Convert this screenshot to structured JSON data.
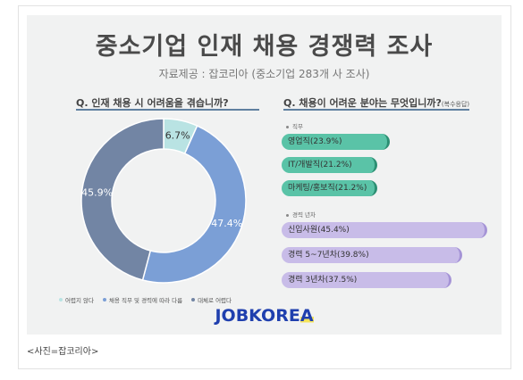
{
  "header": {
    "title": "중소기업 인재 채용 경쟁력 조사",
    "subtitle": "자료제공 : 잡코리아 (중소기업 283개 사 조사)"
  },
  "caption": "<사진=잡코리아>",
  "logo": {
    "text_main": "JOBKORE",
    "text_accent": "A"
  },
  "chart_data": [
    {
      "type": "pie",
      "title": "Q. 인재 채용 시 어려움을 겪습니까?",
      "categories": [
        "어렵지 않다",
        "채용 직무 및 경력에 따라 다름",
        "대체로 어렵다"
      ],
      "values": [
        6.7,
        47.4,
        45.9
      ],
      "labels": [
        "6.7%",
        "47.4%",
        "45.9%"
      ],
      "colors": [
        "#b9e3e3",
        "#7b9fd6",
        "#7285a4"
      ],
      "legend_position": "bottom"
    },
    {
      "type": "bar",
      "title": "Q. 채용이 어려운 분야는 무엇입니까?",
      "title_note": "(복수응답)",
      "groups": [
        {
          "name": "직무",
          "color": "#5ac3a7",
          "categories": [
            "영업직",
            "IT/개발직",
            "마케팅/홍보직"
          ],
          "values": [
            23.9,
            21.2,
            21.2
          ],
          "labels": [
            "영업직(23.9%)",
            "IT/개발직(21.2%)",
            "마케팅/홍보직(21.2%)"
          ]
        },
        {
          "name": "경력 년차",
          "color": "#c8bce8",
          "categories": [
            "신입사원",
            "경력 5~7년차",
            "경력 3년차"
          ],
          "values": [
            45.4,
            39.8,
            37.5
          ],
          "labels": [
            "신입사원(45.4%)",
            "경력 5~7년차(39.8%)",
            "경력 3년차(37.5%)"
          ]
        }
      ]
    }
  ]
}
